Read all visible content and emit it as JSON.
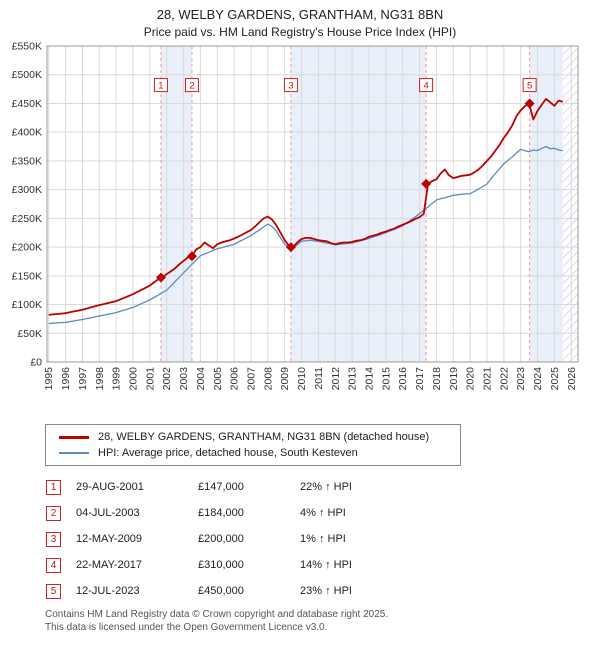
{
  "header": {
    "title": "28, WELBY GARDENS, GRANTHAM, NG31 8BN",
    "subtitle": "Price paid vs. HM Land Registry's House Price Index (HPI)"
  },
  "chart_data": {
    "type": "line",
    "x_range": [
      1994.9,
      2026.4
    ],
    "y_range": [
      0,
      550
    ],
    "y_unit": "GBP thousands",
    "y_ticks": [
      0,
      50,
      100,
      150,
      200,
      250,
      300,
      350,
      400,
      450,
      500,
      550
    ],
    "y_tick_labels": [
      "£0",
      "£50K",
      "£100K",
      "£150K",
      "£200K",
      "£250K",
      "£300K",
      "£350K",
      "£400K",
      "£450K",
      "£500K",
      "£550K"
    ],
    "x_ticks": [
      1995,
      1996,
      1997,
      1998,
      1999,
      2000,
      2001,
      2002,
      2003,
      2004,
      2005,
      2006,
      2007,
      2008,
      2009,
      2010,
      2011,
      2012,
      2013,
      2014,
      2015,
      2016,
      2017,
      2018,
      2019,
      2020,
      2021,
      2022,
      2023,
      2024,
      2025,
      2026
    ],
    "grid": true,
    "band_color": "#e9eff9",
    "sale_line_color": "#ef9a9a",
    "shaded_bands": [
      [
        2001.66,
        2003.5
      ],
      [
        2009.37,
        2017.39
      ],
      [
        2023.53,
        2025.5
      ]
    ],
    "hatch_region": [
      2025.5,
      2026.4
    ],
    "marker_label_y": 482,
    "series": [
      {
        "name": "28, WELBY GARDENS, GRANTHAM, NG31 8BN (detached house)",
        "color": "#bb0000",
        "width": 1.8,
        "x_start": 1995,
        "x_step": 0.25,
        "values": [
          82,
          82.8,
          83.5,
          84.2,
          85,
          86.5,
          88,
          89.5,
          91,
          93,
          95,
          97,
          99,
          100.8,
          102.5,
          104.2,
          106,
          109,
          112,
          115,
          118,
          121.8,
          125.5,
          129.2,
          133,
          138.5,
          144,
          147,
          153,
          158,
          163,
          170,
          176,
          182,
          184,
          196,
          200,
          208,
          203,
          198,
          205,
          208,
          210,
          212,
          215,
          218,
          222,
          226,
          230,
          236,
          243,
          250,
          253,
          248,
          238,
          225,
          212,
          202,
          200,
          208,
          214,
          216,
          216,
          214,
          212,
          211,
          210,
          207,
          205,
          207,
          208,
          208,
          209,
          211,
          212,
          214,
          218,
          220,
          222,
          225,
          227,
          230,
          232,
          236,
          239,
          242,
          245,
          249,
          252,
          258,
          310,
          315,
          318,
          328,
          335,
          325,
          320,
          322,
          324,
          325,
          326,
          330,
          335,
          342,
          350,
          358,
          368,
          378,
          390,
          400,
          412,
          428,
          438,
          445,
          450,
          422,
          437,
          448,
          458,
          452,
          446,
          455,
          453
        ]
      },
      {
        "name": "HPI: Average price, detached house, South Kesteven",
        "color": "#5b8cbe",
        "width": 1.3,
        "x_start": 1995,
        "x_step": 0.25,
        "values": [
          67,
          67.5,
          68,
          68.5,
          69,
          70.2,
          71.5,
          72.8,
          74,
          75.5,
          77,
          78.5,
          80,
          81.5,
          83,
          84.5,
          86,
          88.2,
          90.5,
          92.8,
          95,
          98.2,
          101.5,
          104.8,
          108,
          112.2,
          116.5,
          120.8,
          125,
          132.5,
          140,
          147.5,
          155,
          162.5,
          170,
          177.5,
          185,
          188,
          191,
          194,
          197,
          199,
          201,
          203,
          205,
          208.8,
          212.5,
          216.2,
          220,
          225,
          230,
          235,
          240,
          236,
          228,
          216,
          205,
          199,
          198,
          204,
          210,
          211,
          212,
          211,
          210,
          208.5,
          207,
          205.5,
          204,
          204.8,
          205.5,
          206.2,
          207,
          209,
          211,
          213,
          215,
          217.5,
          220,
          222.5,
          225,
          228,
          231,
          234,
          237,
          242.2,
          247.5,
          252.8,
          258,
          264,
          270,
          276,
          282,
          284,
          286,
          288,
          290,
          291,
          292,
          292.5,
          293,
          297,
          301,
          305.5,
          310,
          319,
          328,
          336.5,
          345,
          351,
          357,
          364,
          370,
          368,
          366,
          369,
          368,
          372,
          375,
          371,
          372,
          369,
          368
        ]
      }
    ],
    "sales": [
      {
        "label": "1",
        "x": 2001.66,
        "value": 147
      },
      {
        "label": "2",
        "x": 2003.5,
        "value": 184
      },
      {
        "label": "3",
        "x": 2009.37,
        "value": 200
      },
      {
        "label": "4",
        "x": 2017.39,
        "value": 310
      },
      {
        "label": "5",
        "x": 2023.53,
        "value": 450
      }
    ]
  },
  "legend": {
    "items": [
      {
        "label": "28, WELBY GARDENS, GRANTHAM, NG31 8BN (detached house)"
      },
      {
        "label": "HPI: Average price, detached house, South Kesteven"
      }
    ]
  },
  "table": {
    "rows": [
      {
        "n": "1",
        "date": "29-AUG-2001",
        "price": "£147,000",
        "hpi": "22% ↑ HPI"
      },
      {
        "n": "2",
        "date": "04-JUL-2003",
        "price": "£184,000",
        "hpi": "4% ↑ HPI"
      },
      {
        "n": "3",
        "date": "12-MAY-2009",
        "price": "£200,000",
        "hpi": "1% ↑ HPI"
      },
      {
        "n": "4",
        "date": "22-MAY-2017",
        "price": "£310,000",
        "hpi": "14% ↑ HPI"
      },
      {
        "n": "5",
        "date": "12-JUL-2023",
        "price": "£450,000",
        "hpi": "23% ↑ HPI"
      }
    ]
  },
  "footer": {
    "line1": "Contains HM Land Registry data © Crown copyright and database right 2025.",
    "line2": "This data is licensed under the Open Government Licence v3.0."
  }
}
